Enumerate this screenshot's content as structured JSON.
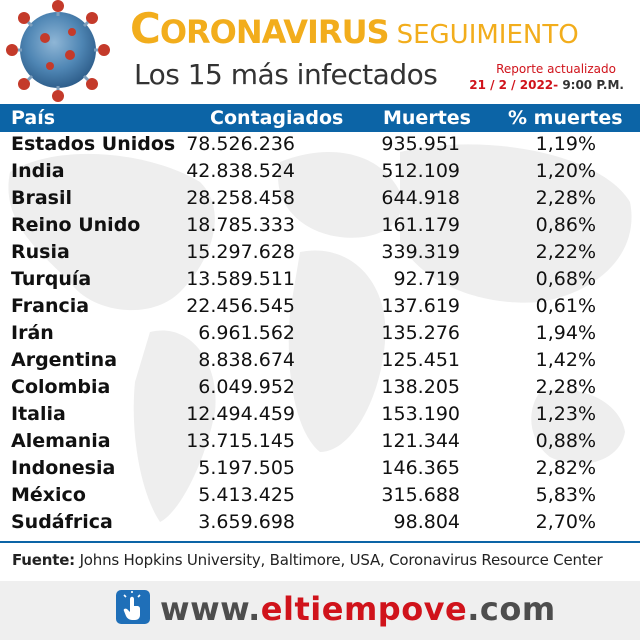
{
  "header": {
    "title_first_letter": "C",
    "title_rest": "ORONAVIRUS",
    "title_tail": "SEGUIMIENTO",
    "subtitle": "Los 15 más infectados",
    "report_label": "Reporte actualizado",
    "report_date": "21 / 2 / 2022-",
    "report_time": "9:00 P.M."
  },
  "table": {
    "columns": [
      "País",
      "Contagiados",
      "Muertes",
      "% muertes"
    ],
    "rows": [
      {
        "pais": "Estados Unidos",
        "contagiados": "78.526.236",
        "muertes": "935.951",
        "pct": "1,19%"
      },
      {
        "pais": "India",
        "contagiados": "42.838.524",
        "muertes": "512.109",
        "pct": "1,20%"
      },
      {
        "pais": "Brasil",
        "contagiados": "28.258.458",
        "muertes": "644.918",
        "pct": "2,28%"
      },
      {
        "pais": "Reino Unido",
        "contagiados": "18.785.333",
        "muertes": "161.179",
        "pct": "0,86%"
      },
      {
        "pais": "Rusia",
        "contagiados": "15.297.628",
        "muertes": "339.319",
        "pct": "2,22%"
      },
      {
        "pais": "Turquía",
        "contagiados": "13.589.511",
        "muertes": "92.719",
        "pct": "0,68%"
      },
      {
        "pais": "Francia",
        "contagiados": "22.456.545",
        "muertes": "137.619",
        "pct": "0,61%"
      },
      {
        "pais": "Irán",
        "contagiados": "6.961.562",
        "muertes": "135.276",
        "pct": "1,94%"
      },
      {
        "pais": "Argentina",
        "contagiados": "8.838.674",
        "muertes": "125.451",
        "pct": "1,42%"
      },
      {
        "pais": "Colombia",
        "contagiados": "6.049.952",
        "muertes": "138.205",
        "pct": "2,28%"
      },
      {
        "pais": "Italia",
        "contagiados": "12.494.459",
        "muertes": "153.190",
        "pct": "1,23%"
      },
      {
        "pais": "Alemania",
        "contagiados": "13.715.145",
        "muertes": "121.344",
        "pct": "0,88%"
      },
      {
        "pais": "Indonesia",
        "contagiados": "5.197.505",
        "muertes": "146.365",
        "pct": "2,82%"
      },
      {
        "pais": "México",
        "contagiados": "5.413.425",
        "muertes": "315.688",
        "pct": "5,83%"
      },
      {
        "pais": "Sudáfrica",
        "contagiados": "3.659.698",
        "muertes": "98.804",
        "pct": "2,70%"
      }
    ]
  },
  "footer": {
    "source_label": "Fuente:",
    "source_text": "Johns Hopkins University, Baltimore, USA, Coronavirus Resource Center",
    "url_prefix": "www.",
    "url_domain": "eltiempove",
    "url_suffix": ".com"
  },
  "colors": {
    "accent_orange": "#f2ad1c",
    "header_blue": "#0c64a6",
    "red": "#d0131b"
  },
  "icons": [
    "coronavirus-illustration",
    "hand-pointer-icon"
  ]
}
